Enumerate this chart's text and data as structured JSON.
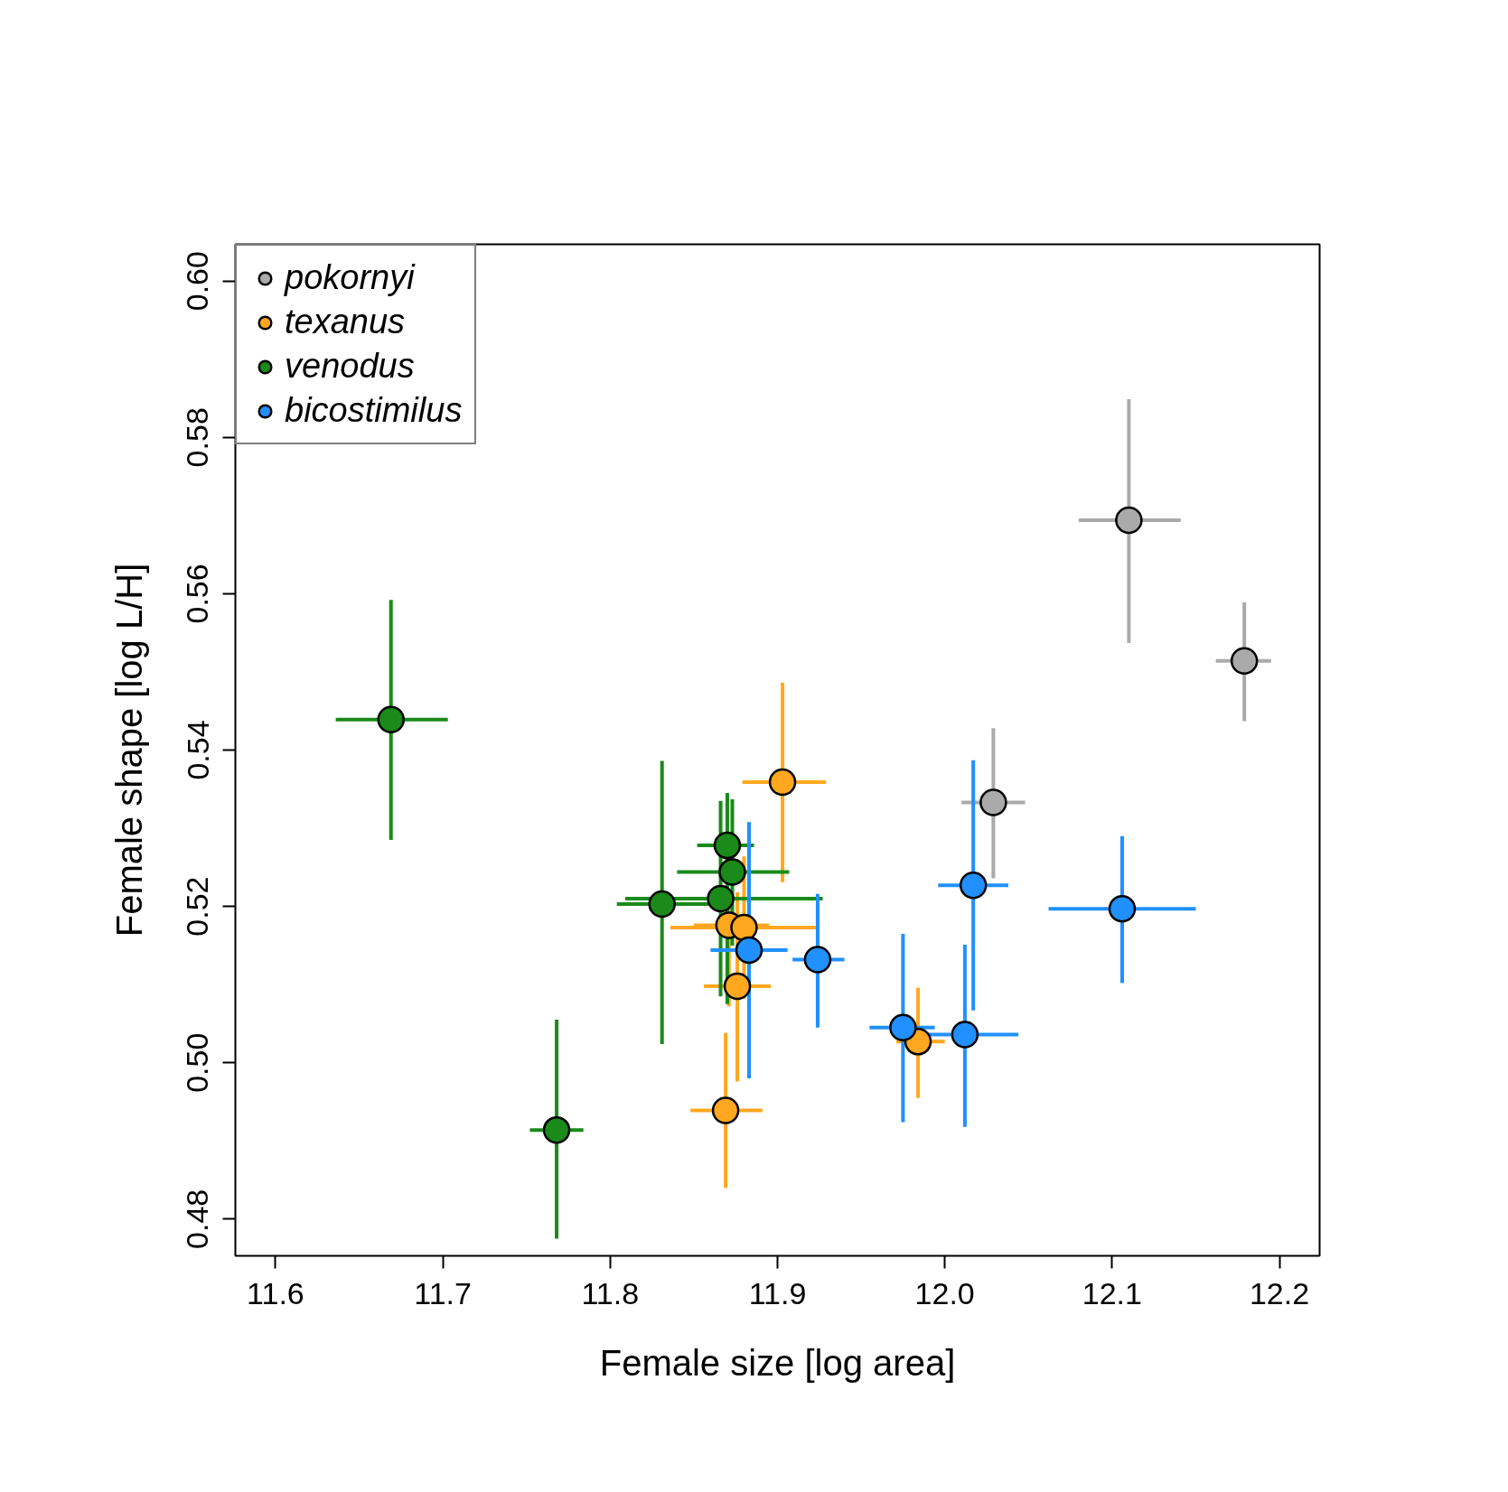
{
  "chart_data": {
    "type": "scatter",
    "xlabel": "Female size [log area]",
    "ylabel": "Female shape [log L/H]",
    "xlim": [
      11.576,
      12.224
    ],
    "ylim": [
      0.4753,
      0.6047
    ],
    "xticks": [
      11.6,
      11.7,
      11.8,
      11.9,
      {
        "value": 12.0,
        "label": "12.0"
      },
      12.1,
      12.2
    ],
    "yticks": [
      {
        "value": 0.48,
        "label": "0.48"
      },
      {
        "value": 0.5,
        "label": "0.50"
      },
      {
        "value": 0.52,
        "label": "0.52"
      },
      {
        "value": 0.54,
        "label": "0.54"
      },
      {
        "value": 0.56,
        "label": "0.56"
      },
      {
        "value": 0.58,
        "label": "0.58"
      },
      {
        "value": 0.6,
        "label": "0.60"
      }
    ],
    "grid": false,
    "legend": "top left",
    "marker": "circle",
    "series": [
      {
        "name": "pokornyi",
        "color": "#aaaaaa",
        "x": [
          12.11,
          12.179,
          12.029
        ],
        "values": [
          0.5694,
          0.5514,
          0.5333
        ],
        "xerrors": [
          [
            12.08,
            12.141
          ],
          [
            12.162,
            12.195
          ],
          [
            12.01,
            12.048
          ]
        ],
        "errors": [
          [
            0.5537,
            0.5849
          ],
          [
            0.5437,
            0.5589
          ],
          [
            0.5236,
            0.5428
          ]
        ]
      },
      {
        "name": "texanus",
        "color": "#ffa81f",
        "x": [
          11.903,
          11.871,
          11.88,
          11.876,
          11.869,
          11.984
        ],
        "values": [
          0.5359,
          0.5176,
          0.5173,
          0.5098,
          0.4939,
          0.5027
        ],
        "xerrors": [
          [
            11.879,
            11.929
          ],
          [
            11.85,
            11.895
          ],
          [
            11.836,
            11.925
          ],
          [
            11.856,
            11.896
          ],
          [
            11.848,
            11.891
          ],
          [
            11.971,
            12.0
          ]
        ],
        "errors": [
          [
            0.5231,
            0.5486
          ],
          [
            0.5072,
            0.5218
          ],
          [
            0.5082,
            0.5264
          ],
          [
            0.4976,
            0.5218
          ],
          [
            0.484,
            0.5038
          ],
          [
            0.4955,
            0.5096
          ]
        ]
      },
      {
        "name": "venodus",
        "color": "#1a8a1a",
        "x": [
          11.669,
          11.831,
          11.87,
          11.873,
          11.866,
          11.768
        ],
        "values": [
          0.5439,
          0.5203,
          0.5278,
          0.5244,
          0.521,
          0.4914
        ],
        "xerrors": [
          [
            11.636,
            11.703
          ],
          [
            11.804,
            11.859
          ],
          [
            11.852,
            11.886
          ],
          [
            11.84,
            11.907
          ],
          [
            11.809,
            11.927
          ],
          [
            11.752,
            11.784
          ]
        ],
        "errors": [
          [
            0.5285,
            0.5592
          ],
          [
            0.5024,
            0.5386
          ],
          [
            0.5075,
            0.5345
          ],
          [
            0.515,
            0.5337
          ],
          [
            0.5085,
            0.5335
          ],
          [
            0.4775,
            0.5055
          ]
        ]
      },
      {
        "name": "bicostimilus",
        "color": "#2090ff",
        "x": [
          11.883,
          11.924,
          11.975,
          12.012,
          12.017,
          12.106
        ],
        "values": [
          0.5144,
          0.5132,
          0.5045,
          0.5036,
          0.5227,
          0.5197
        ],
        "xerrors": [
          [
            11.86,
            11.906
          ],
          [
            11.909,
            11.94
          ],
          [
            11.955,
            11.994
          ],
          [
            11.989,
            12.044
          ],
          [
            11.996,
            12.038
          ],
          [
            12.062,
            12.15
          ]
        ],
        "errors": [
          [
            0.498,
            0.5308
          ],
          [
            0.5045,
            0.5216
          ],
          [
            0.4924,
            0.5165
          ],
          [
            0.4918,
            0.5151
          ],
          [
            0.5067,
            0.5387
          ],
          [
            0.5102,
            0.529
          ]
        ]
      }
    ]
  }
}
